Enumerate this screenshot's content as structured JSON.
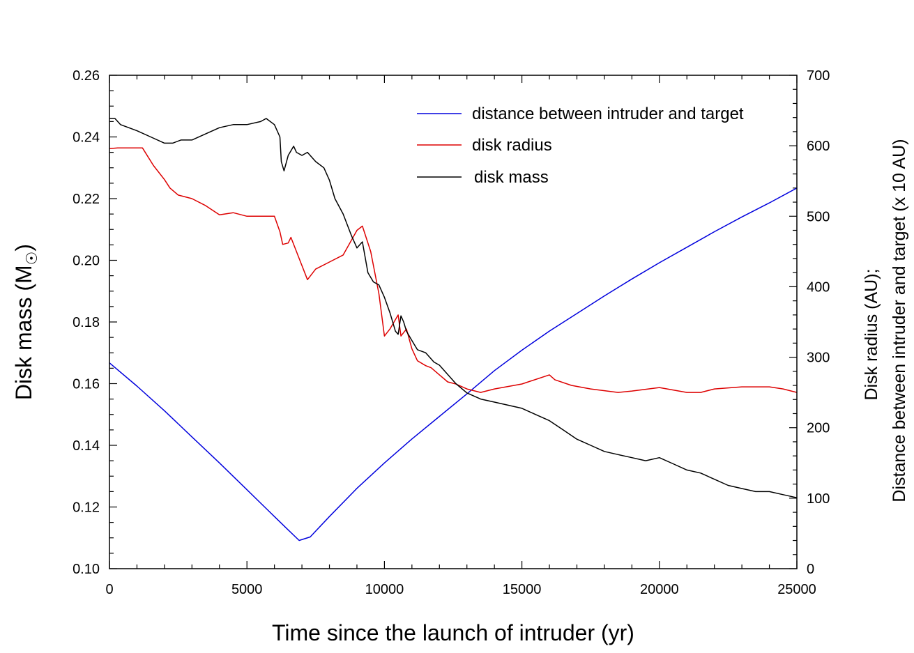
{
  "chart_data": {
    "type": "line",
    "title": "",
    "xlabel": "Time since the launch of intruder (yr)",
    "ylabel_left": {
      "prefix": "Disk mass (M",
      "subscript": "☉",
      "suffix": ")"
    },
    "ylabel_right_line1": "Disk radius (AU);",
    "ylabel_right_line2": "Distance between intruder and target (x 10 AU)",
    "xlim": [
      0,
      25000
    ],
    "ylim_left": [
      0.1,
      0.26
    ],
    "ylim_right": [
      0,
      700
    ],
    "x_ticks": [
      0,
      5000,
      10000,
      15000,
      20000,
      25000
    ],
    "x_tick_labels": [
      "0",
      "5000",
      "10000",
      "15000",
      "20000",
      "25000"
    ],
    "y_left_ticks": [
      0.1,
      0.12,
      0.14,
      0.16,
      0.18,
      0.2,
      0.22,
      0.24,
      0.26
    ],
    "y_left_tick_labels": [
      "0.10",
      "0.12",
      "0.14",
      "0.16",
      "0.18",
      "0.20",
      "0.22",
      "0.24",
      "0.26"
    ],
    "y_right_ticks": [
      0,
      100,
      200,
      300,
      400,
      500,
      600,
      700
    ],
    "y_right_tick_labels": [
      "0",
      "100",
      "200",
      "300",
      "400",
      "500",
      "600",
      "700"
    ],
    "legend_position": "top-right",
    "series": [
      {
        "name": "distance between intruder and target",
        "color": "#0000dd",
        "axis": "right",
        "x": [
          0,
          1000,
          2000,
          3000,
          4000,
          5000,
          6000,
          6500,
          6900,
          7300,
          8000,
          9000,
          10000,
          11000,
          12000,
          13000,
          14000,
          15000,
          16000,
          17000,
          18000,
          19000,
          20000,
          21000,
          22000,
          23000,
          24000,
          25000
        ],
        "y": [
          292,
          259,
          224,
          187,
          150,
          112,
          74,
          55,
          40,
          45,
          74,
          114,
          150,
          184,
          216,
          248,
          281,
          310,
          337,
          362,
          387,
          411,
          434,
          456,
          478,
          499,
          519,
          540
        ]
      },
      {
        "name": "disk radius",
        "color": "#dd0000",
        "axis": "right",
        "x": [
          0,
          300,
          500,
          1200,
          1600,
          2000,
          2200,
          2500,
          3000,
          3500,
          4000,
          4500,
          5000,
          5500,
          6000,
          6200,
          6300,
          6500,
          6600,
          7000,
          7200,
          7500,
          8000,
          8500,
          9000,
          9200,
          9500,
          9800,
          10000,
          10200,
          10500,
          10600,
          10800,
          11000,
          11200,
          11500,
          11700,
          12000,
          12300,
          12600,
          13000,
          13500,
          14000,
          15000,
          16000,
          16200,
          16800,
          17500,
          18500,
          19000,
          20000,
          21000,
          21500,
          22000,
          23000,
          24000,
          24500,
          25000
        ],
        "y": [
          596,
          597,
          597,
          597,
          572,
          552,
          540,
          530,
          525,
          515,
          502,
          505,
          500,
          500,
          500,
          478,
          460,
          462,
          470,
          430,
          410,
          425,
          435,
          445,
          480,
          486,
          450,
          390,
          330,
          340,
          360,
          330,
          340,
          312,
          295,
          288,
          285,
          275,
          265,
          262,
          255,
          250,
          255,
          262,
          275,
          268,
          260,
          255,
          250,
          252,
          257,
          250,
          250,
          255,
          258,
          258,
          255,
          250
        ]
      },
      {
        "name": "disk mass",
        "color": "#000000",
        "axis": "left",
        "x": [
          0,
          200,
          400,
          700,
          1000,
          1500,
          2000,
          2300,
          2600,
          3000,
          3500,
          4000,
          4500,
          5000,
          5500,
          5700,
          6000,
          6200,
          6250,
          6350,
          6500,
          6700,
          6800,
          7000,
          7200,
          7500,
          7800,
          8000,
          8200,
          8500,
          8800,
          9000,
          9200,
          9400,
          9600,
          9800,
          10000,
          10200,
          10400,
          10500,
          10600,
          10700,
          10800,
          11000,
          11200,
          11500,
          11800,
          12000,
          12300,
          12600,
          13000,
          13500,
          14000,
          15000,
          15500,
          16000,
          16500,
          17000,
          17500,
          18000,
          18500,
          19000,
          19500,
          20000,
          20500,
          21000,
          21500,
          22000,
          22500,
          23000,
          23500,
          24000,
          24500,
          25000
        ],
        "y": [
          0.246,
          0.246,
          0.244,
          0.243,
          0.242,
          0.24,
          0.238,
          0.238,
          0.239,
          0.239,
          0.241,
          0.243,
          0.244,
          0.244,
          0.245,
          0.246,
          0.244,
          0.24,
          0.232,
          0.229,
          0.234,
          0.237,
          0.235,
          0.234,
          0.235,
          0.232,
          0.23,
          0.226,
          0.22,
          0.215,
          0.208,
          0.204,
          0.206,
          0.196,
          0.193,
          0.192,
          0.188,
          0.183,
          0.177,
          0.176,
          0.182,
          0.18,
          0.177,
          0.174,
          0.171,
          0.17,
          0.167,
          0.166,
          0.163,
          0.16,
          0.157,
          0.155,
          0.154,
          0.152,
          0.15,
          0.148,
          0.145,
          0.142,
          0.14,
          0.138,
          0.137,
          0.136,
          0.135,
          0.136,
          0.134,
          0.132,
          0.131,
          0.129,
          0.127,
          0.126,
          0.125,
          0.125,
          0.124,
          0.123
        ]
      }
    ]
  }
}
